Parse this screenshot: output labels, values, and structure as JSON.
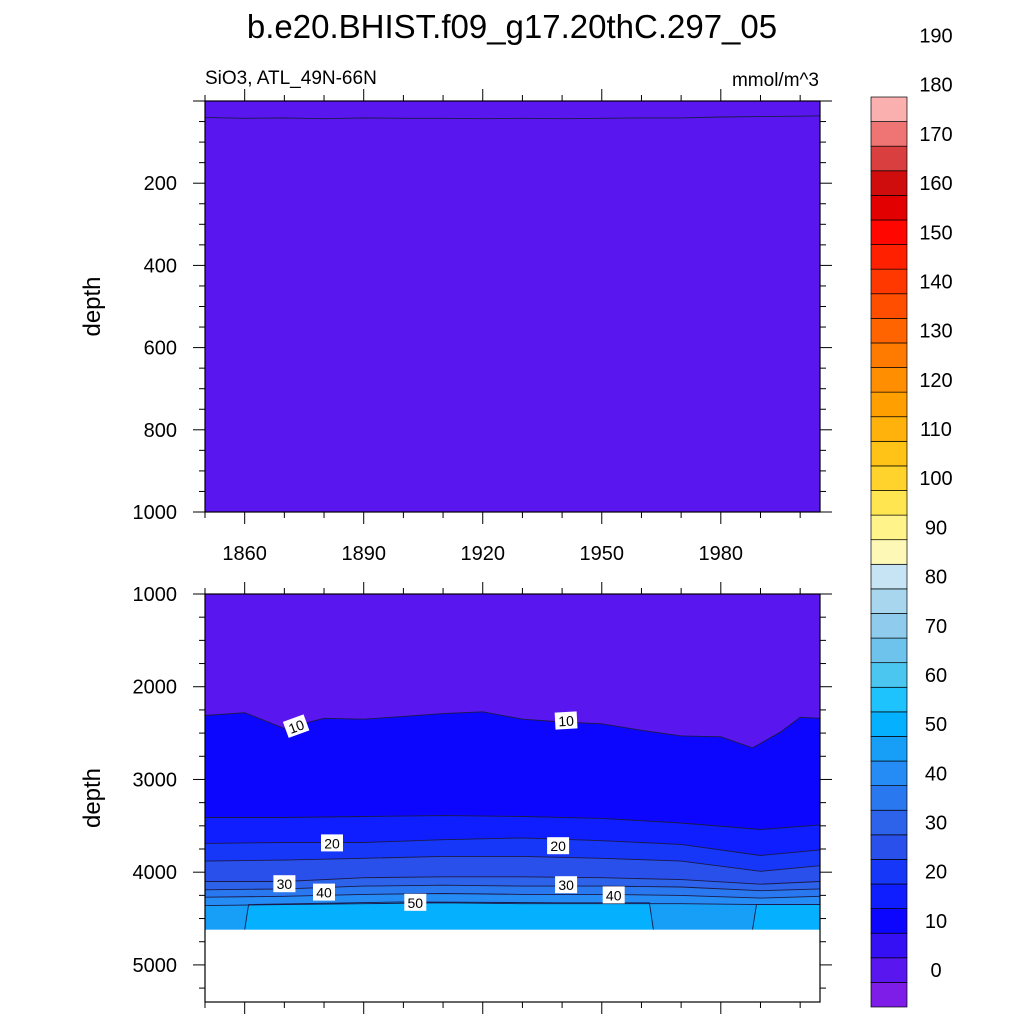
{
  "chart_data": {
    "type": "heatmap",
    "title": "b.e20.BHIST.f09_g17.20thC.297_05",
    "variable_label": "SiO3, ATL_49N-66N",
    "units_label": "mmol/m^3",
    "xlabel": "",
    "ylabel": "depth",
    "xlim": [
      1850,
      2005
    ],
    "x_ticks": [
      1860,
      1890,
      1920,
      1950,
      1980
    ],
    "panels": [
      {
        "name": "upper",
        "ylim": [
          0,
          1000
        ],
        "y_ticks": [
          200,
          400,
          600,
          800,
          1000
        ],
        "ylabel": "depth",
        "background_level": 0,
        "contours": [
          {
            "level": 0,
            "depth_by_year": [
              [
                1850,
                40
              ],
              [
                1860,
                42
              ],
              [
                1870,
                41
              ],
              [
                1880,
                43
              ],
              [
                1890,
                41
              ],
              [
                1900,
                42
              ],
              [
                1910,
                42
              ],
              [
                1920,
                43
              ],
              [
                1930,
                42
              ],
              [
                1940,
                43
              ],
              [
                1950,
                42
              ],
              [
                1960,
                41
              ],
              [
                1970,
                41
              ],
              [
                1980,
                39
              ],
              [
                1990,
                38
              ],
              [
                2000,
                37
              ],
              [
                2005,
                36
              ]
            ]
          }
        ],
        "contour_labels": []
      },
      {
        "name": "lower",
        "ylim": [
          1000,
          5400
        ],
        "y_ticks": [
          1000,
          2000,
          3000,
          4000,
          5000
        ],
        "ylabel": "depth",
        "background_level": 0,
        "bottom_depth": 4620,
        "contours": [
          {
            "level": 10,
            "depth_by_year": [
              [
                1850,
                2310
              ],
              [
                1860,
                2280
              ],
              [
                1870,
                2450
              ],
              [
                1880,
                2340
              ],
              [
                1890,
                2350
              ],
              [
                1900,
                2320
              ],
              [
                1910,
                2290
              ],
              [
                1920,
                2270
              ],
              [
                1930,
                2350
              ],
              [
                1940,
                2380
              ],
              [
                1950,
                2400
              ],
              [
                1960,
                2470
              ],
              [
                1970,
                2530
              ],
              [
                1980,
                2540
              ],
              [
                1988,
                2660
              ],
              [
                1995,
                2490
              ],
              [
                2000,
                2330
              ],
              [
                2005,
                2340
              ]
            ]
          },
          {
            "level": 15,
            "depth_by_year": [
              [
                1850,
                3410
              ],
              [
                1870,
                3410
              ],
              [
                1890,
                3400
              ],
              [
                1910,
                3390
              ],
              [
                1930,
                3400
              ],
              [
                1950,
                3420
              ],
              [
                1970,
                3470
              ],
              [
                1990,
                3540
              ],
              [
                2005,
                3490
              ]
            ]
          },
          {
            "level": 20,
            "depth_by_year": [
              [
                1850,
                3690
              ],
              [
                1870,
                3680
              ],
              [
                1890,
                3680
              ],
              [
                1910,
                3650
              ],
              [
                1930,
                3630
              ],
              [
                1950,
                3660
              ],
              [
                1970,
                3700
              ],
              [
                1990,
                3820
              ],
              [
                2005,
                3760
              ]
            ]
          },
          {
            "level": 25,
            "depth_by_year": [
              [
                1850,
                3880
              ],
              [
                1870,
                3870
              ],
              [
                1890,
                3850
              ],
              [
                1910,
                3830
              ],
              [
                1930,
                3830
              ],
              [
                1950,
                3850
              ],
              [
                1970,
                3880
              ],
              [
                1990,
                3990
              ],
              [
                2005,
                3930
              ]
            ]
          },
          {
            "level": 30,
            "depth_by_year": [
              [
                1850,
                4100
              ],
              [
                1870,
                4100
              ],
              [
                1890,
                4060
              ],
              [
                1910,
                4050
              ],
              [
                1930,
                4050
              ],
              [
                1950,
                4060
              ],
              [
                1970,
                4080
              ],
              [
                1990,
                4130
              ],
              [
                2005,
                4100
              ]
            ]
          },
          {
            "level": 35,
            "depth_by_year": [
              [
                1850,
                4190
              ],
              [
                1870,
                4180
              ],
              [
                1890,
                4150
              ],
              [
                1910,
                4140
              ],
              [
                1930,
                4150
              ],
              [
                1950,
                4150
              ],
              [
                1970,
                4160
              ],
              [
                1990,
                4200
              ],
              [
                2005,
                4180
              ]
            ]
          },
          {
            "level": 40,
            "depth_by_year": [
              [
                1850,
                4270
              ],
              [
                1870,
                4260
              ],
              [
                1890,
                4240
              ],
              [
                1910,
                4230
              ],
              [
                1930,
                4240
              ],
              [
                1950,
                4240
              ],
              [
                1970,
                4250
              ],
              [
                1990,
                4280
              ],
              [
                2005,
                4260
              ]
            ]
          },
          {
            "level": 45,
            "depth_by_year": [
              [
                1850,
                4360
              ],
              [
                1870,
                4350
              ],
              [
                1890,
                4340
              ],
              [
                1910,
                4330
              ],
              [
                1930,
                4340
              ],
              [
                1950,
                4340
              ],
              [
                1970,
                4340
              ],
              [
                1990,
                4350
              ],
              [
                2005,
                4350
              ]
            ]
          },
          {
            "level": 50,
            "depth_by_year": [
              [
                1860,
                4620
              ],
              [
                1861,
                4350
              ],
              [
                1900,
                4320
              ],
              [
                1940,
                4330
              ],
              [
                1962,
                4330
              ],
              [
                1963,
                4620
              ]
            ]
          },
          {
            "level": 50,
            "depth_by_year": [
              [
                1988,
                4620
              ],
              [
                1989,
                4350
              ],
              [
                2005,
                4350
              ]
            ]
          }
        ],
        "contour_labels": [
          {
            "text": "10",
            "x": 1873,
            "depth": 2430,
            "angle": -20
          },
          {
            "text": "10",
            "x": 1941,
            "depth": 2370,
            "angle": -3
          },
          {
            "text": "20",
            "x": 1882,
            "depth": 3690,
            "angle": 0
          },
          {
            "text": "20",
            "x": 1939,
            "depth": 3720,
            "angle": 0
          },
          {
            "text": "30",
            "x": 1870,
            "depth": 4130,
            "angle": 0
          },
          {
            "text": "30",
            "x": 1941,
            "depth": 4140,
            "angle": 0
          },
          {
            "text": "40",
            "x": 1880,
            "depth": 4220,
            "angle": 0
          },
          {
            "text": "40",
            "x": 1953,
            "depth": 4250,
            "angle": 0
          },
          {
            "text": "50",
            "x": 1903,
            "depth": 4330,
            "angle": 0
          }
        ]
      }
    ],
    "colorbar": {
      "label_values": [
        0,
        10,
        20,
        30,
        40,
        50,
        60,
        70,
        80,
        90,
        100,
        110,
        120,
        130,
        140,
        150,
        160,
        170,
        180,
        190
      ],
      "colors": [
        "#7e1de8",
        "#5a16ee",
        "#3610f5",
        "#0c06ff",
        "#0e1efe",
        "#1637f8",
        "#2a50ec",
        "#2d63ea",
        "#2a78ef",
        "#258cf5",
        "#179ff8",
        "#05b0ff",
        "#1ec3fd",
        "#4ac6f1",
        "#6dc3ec",
        "#8ecbec",
        "#a8d6ef",
        "#c7e4f5",
        "#fdf8b6",
        "#fff38a",
        "#ffe650",
        "#ffd22c",
        "#ffc216",
        "#ffb10c",
        "#ffa000",
        "#ff8e00",
        "#ff7b00",
        "#ff6400",
        "#ff4e00",
        "#ff3800",
        "#ff2000",
        "#ff0700",
        "#e20000",
        "#cf0d0d",
        "#d93f3f",
        "#ef7474",
        "#fbb0b0"
      ]
    }
  }
}
